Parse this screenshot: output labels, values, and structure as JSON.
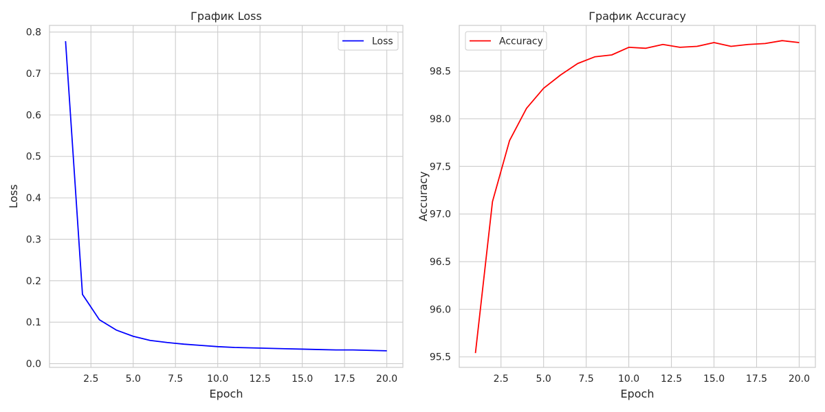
{
  "chart_data": [
    {
      "type": "line",
      "title": "График Loss",
      "xlabel": "Epoch",
      "ylabel": "Loss",
      "grid": true,
      "legend_position": "top-right",
      "xlim": [
        0.05,
        20.95
      ],
      "ylim": [
        -0.009,
        0.816
      ],
      "x_ticks": [
        2.5,
        5.0,
        7.5,
        10.0,
        12.5,
        15.0,
        17.5,
        20.0
      ],
      "x_tick_labels": [
        "2.5",
        "5.0",
        "7.5",
        "10.0",
        "12.5",
        "15.0",
        "17.5",
        "20.0"
      ],
      "y_ticks": [
        0.0,
        0.1,
        0.2,
        0.3,
        0.4,
        0.5,
        0.6,
        0.7,
        0.8
      ],
      "y_tick_labels": [
        "0.0",
        "0.1",
        "0.2",
        "0.3",
        "0.4",
        "0.5",
        "0.6",
        "0.7",
        "0.8"
      ],
      "series": [
        {
          "name": "Loss",
          "color": "#0000ff",
          "x": [
            1,
            2,
            3,
            4,
            5,
            6,
            7,
            8,
            9,
            10,
            11,
            12,
            13,
            14,
            15,
            16,
            17,
            18,
            19,
            20
          ],
          "y": [
            0.778,
            0.167,
            0.106,
            0.081,
            0.066,
            0.056,
            0.051,
            0.047,
            0.044,
            0.041,
            0.039,
            0.038,
            0.037,
            0.036,
            0.035,
            0.034,
            0.033,
            0.033,
            0.032,
            0.031
          ]
        }
      ]
    },
    {
      "type": "line",
      "title": "График Accuracy",
      "xlabel": "Epoch",
      "ylabel": "Accuracy",
      "grid": true,
      "legend_position": "top-left",
      "xlim": [
        0.05,
        20.95
      ],
      "ylim": [
        95.39,
        98.98
      ],
      "x_ticks": [
        2.5,
        5.0,
        7.5,
        10.0,
        12.5,
        15.0,
        17.5,
        20.0
      ],
      "x_tick_labels": [
        "2.5",
        "5.0",
        "7.5",
        "10.0",
        "12.5",
        "15.0",
        "17.5",
        "20.0"
      ],
      "y_ticks": [
        95.5,
        96.0,
        96.5,
        97.0,
        97.5,
        98.0,
        98.5
      ],
      "y_tick_labels": [
        "95.5",
        "96.0",
        "96.5",
        "97.0",
        "97.5",
        "98.0",
        "98.5"
      ],
      "series": [
        {
          "name": "Accuracy",
          "color": "#ff0000",
          "x": [
            1,
            2,
            3,
            4,
            5,
            6,
            7,
            8,
            9,
            10,
            11,
            12,
            13,
            14,
            15,
            16,
            17,
            18,
            19,
            20
          ],
          "y": [
            95.54,
            97.13,
            97.77,
            98.11,
            98.32,
            98.46,
            98.58,
            98.65,
            98.67,
            98.75,
            98.74,
            98.78,
            98.75,
            98.76,
            98.8,
            98.76,
            98.78,
            98.79,
            98.82,
            98.8
          ]
        }
      ]
    }
  ]
}
